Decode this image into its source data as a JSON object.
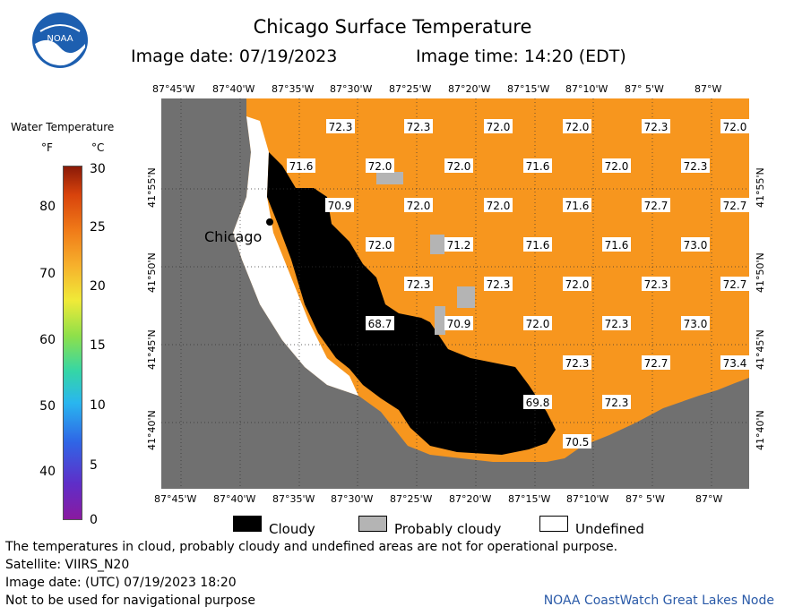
{
  "header": {
    "title": "Chicago Surface Temperature",
    "image_date_label": "Image date: 07/19/2023",
    "image_time_label": "Image time: 14:20 (EDT)",
    "logo_text": "NOAA"
  },
  "legend": {
    "title": "Water Temperature",
    "unit_f": "°F",
    "unit_c": "°C",
    "fahrenheit_ticks": [
      "80",
      "70",
      "60",
      "50",
      "40"
    ],
    "celsius_ticks": [
      "30",
      "25",
      "20",
      "15",
      "10",
      "5",
      "0"
    ]
  },
  "map": {
    "longitude_labels": [
      "87°45'W",
      "87°40'W",
      "87°35'W",
      "87°30'W",
      "87°25'W",
      "87°20'W",
      "87°15'W",
      "87°10'W",
      "87° 5'W",
      "87°W"
    ],
    "latitude_labels": [
      "41°55'N",
      "41°50'N",
      "41°45'N",
      "41°40'N"
    ],
    "city_label": "Chicago",
    "colors": {
      "land": "#707070",
      "water": "#f7961e",
      "cloud": "#000000",
      "probably_cloudy": "#b4b4b4",
      "undefined": "#ffffff"
    },
    "temperatures": [
      {
        "v": "72.3"
      },
      {
        "v": "72.3"
      },
      {
        "v": "72.0"
      },
      {
        "v": "72.0"
      },
      {
        "v": "72.3"
      },
      {
        "v": "72.0"
      },
      {
        "v": "71.6"
      },
      {
        "v": "72.0"
      },
      {
        "v": "72.0"
      },
      {
        "v": "71.6"
      },
      {
        "v": "72.0"
      },
      {
        "v": "72.3"
      },
      {
        "v": "70.9"
      },
      {
        "v": "72.0"
      },
      {
        "v": "72.0"
      },
      {
        "v": "71.6"
      },
      {
        "v": "72.7"
      },
      {
        "v": "72.7"
      },
      {
        "v": "72.0"
      },
      {
        "v": "71.2"
      },
      {
        "v": "71.6"
      },
      {
        "v": "71.6"
      },
      {
        "v": "73.0"
      },
      {
        "v": "72.3"
      },
      {
        "v": "72.3"
      },
      {
        "v": "72.0"
      },
      {
        "v": "72.3"
      },
      {
        "v": "72.7"
      },
      {
        "v": "68.7"
      },
      {
        "v": "70.9"
      },
      {
        "v": "72.0"
      },
      {
        "v": "72.3"
      },
      {
        "v": "73.0"
      },
      {
        "v": "72.3"
      },
      {
        "v": "72.7"
      },
      {
        "v": "73.4"
      },
      {
        "v": "69.8"
      },
      {
        "v": "72.3"
      },
      {
        "v": "70.5"
      }
    ]
  },
  "key": {
    "cloudy": "Cloudy",
    "probably_cloudy": "Probably cloudy",
    "undefined": "Undefined"
  },
  "notes": {
    "disclaimer": "The temperatures in cloud, probably cloudy and undefined areas are not for operational purpose.",
    "satellite": "Satellite: VIIRS_N20",
    "utc_date": "Image date: (UTC) 07/19/2023  18:20",
    "navigation": "Not to be used for navigational purpose",
    "node": "NOAA CoastWatch Great Lakes Node"
  }
}
